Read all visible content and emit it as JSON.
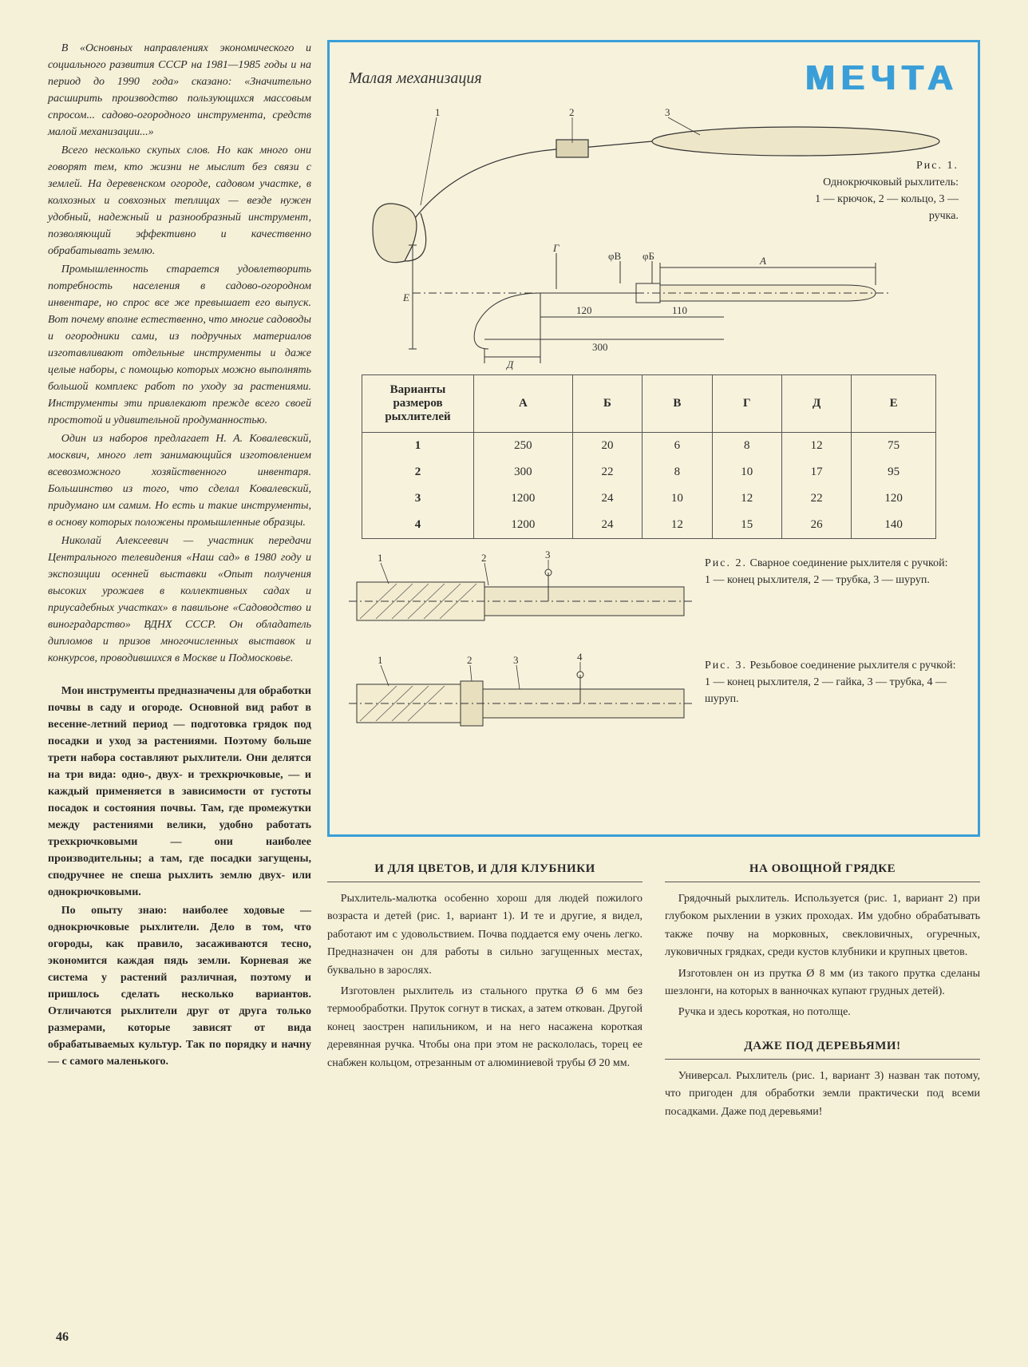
{
  "page_number": "46",
  "section_label": "Малая механизация",
  "title": "МЕЧТА",
  "colors": {
    "accent": "#3a9fd8",
    "paper": "#f5f0d8",
    "ink": "#2a2a2a"
  },
  "intro": {
    "p1": "В «Основных направлениях экономического и социального развития СССР на 1981—1985 годы и на период до 1990 года» сказано: «Значительно расширить производство пользующихся массовым спросом... садово-огородного инструмента, средств малой механизации...»",
    "p2": "Всего несколько скупых слов. Но как много они говорят тем, кто жизни не мыслит без связи с землей. На деревенском огороде, садовом участке, в колхозных и совхозных теплицах — везде нужен удобный, надежный и разнообразный инструмент, позволяющий эффективно и качественно обрабатывать землю.",
    "p3": "Промышленность старается удовлетворить потребность населения в садово-огородном инвентаре, но спрос все же превышает его выпуск. Вот почему вполне естественно, что многие садоводы и огородники сами, из подручных материалов изготавливают отдельные инструменты и даже целые наборы, с помощью которых можно выполнять большой комплекс работ по уходу за растениями. Инструменты эти привлекают прежде всего своей простотой и удивительной продуманностью.",
    "p4": "Один из наборов предлагает Н. А. Ковалевский, москвич, много лет занимающийся изготовлением всевозможного хозяйственного инвентаря. Большинство из того, что сделал Ковалевский, придумано им самим. Но есть и такие инструменты, в основу которых положены промышленные образцы.",
    "p5": "Николай Алексеевич — участник передачи Центрального телевидения «Наш сад» в 1980 году и экспозиции осенней выставки «Опыт получения высоких урожаев в коллективных садах и приусадебных участках» в павильоне «Садоводство и виноградарство» ВДНХ СССР. Он обладатель дипломов и призов многочисленных выставок и конкурсов, проводившихся в Москве и Подмосковье."
  },
  "bold_intro": {
    "p1": "Мои инструменты предназначены для обработки почвы в саду и огороде. Основной вид работ в весенне-летний период — подготовка грядок под посадки и уход за растениями. Поэтому больше трети набора составляют рыхлители. Они делятся на три вида: одно-, двух- и трехкрючковые, — и каждый применяется в зависимости от густоты посадок и состояния почвы. Там, где промежутки между растениями велики, удобно работать трехкрючковыми — они наиболее производительны; а там, где посадки загущены, сподручнее не спеша рыхлить землю двух- или однокрючковыми.",
    "p2": "По опыту знаю: наиболее ходовые — однокрючковые рыхлители. Дело в том, что огороды, как правило, засаживаются тесно, экономится каждая пядь земли. Корневая же система у растений различная, поэтому и пришлось сделать несколько вариантов. Отличаются рыхлители друг от друга только размерами, которые зависят от вида обрабатываемых культур. Так по порядку и начну — с самого маленького."
  },
  "fig1": {
    "caption_title": "Рис. 1.",
    "caption_name": "Однокрючковый рыхлитель:",
    "legend": "1 — крючок, 2 — кольцо, 3 — ручка.",
    "dim_labels": [
      "А",
      "Б",
      "В",
      "Г",
      "Д",
      "Е"
    ],
    "dims_shown": {
      "d1": "120",
      "d2": "110",
      "d3": "300"
    },
    "callouts": [
      "1",
      "2",
      "3"
    ]
  },
  "table": {
    "header_left": "Варианты размеров рыхлителей",
    "cols": [
      "А",
      "Б",
      "В",
      "Г",
      "Д",
      "Е"
    ],
    "rows": [
      {
        "n": "1",
        "v": [
          "250",
          "20",
          "6",
          "8",
          "12",
          "75"
        ]
      },
      {
        "n": "2",
        "v": [
          "300",
          "22",
          "8",
          "10",
          "17",
          "95"
        ]
      },
      {
        "n": "3",
        "v": [
          "1200",
          "24",
          "10",
          "12",
          "22",
          "120"
        ]
      },
      {
        "n": "4",
        "v": [
          "1200",
          "24",
          "12",
          "15",
          "26",
          "140"
        ]
      }
    ]
  },
  "fig2": {
    "title": "Рис. 2.",
    "name": "Сварное соединение рыхлителя с ручкой:",
    "legend": "1 — конец рыхлителя, 2 — трубка, 3 — шуруп.",
    "callouts": [
      "1",
      "2",
      "3"
    ]
  },
  "fig3": {
    "title": "Рис. 3.",
    "name": "Резьбовое соединение рыхлителя с ручкой:",
    "legend": "1 — конец рыхлителя, 2 — гайка, 3 — трубка, 4 — шуруп.",
    "callouts": [
      "1",
      "2",
      "3",
      "4"
    ]
  },
  "articles": {
    "a1": {
      "h": "И ДЛЯ ЦВЕТОВ, И ДЛЯ КЛУБНИКИ",
      "p1": "Рыхлитель-малютка особенно хорош для людей пожилого возраста и детей (рис. 1, вариант 1). И те и другие, я видел, работают им с удовольствием. Почва поддается ему очень легко. Предназначен он для работы в сильно загущенных местах, буквально в зарослях.",
      "p2": "Изготовлен рыхлитель из стального прутка Ø 6 мм без термообработки. Пруток согнут в тисках, а затем откован. Другой конец заострен напильником, и на него насажена короткая деревянная ручка. Чтобы она при этом не раскололась, торец ее снабжен кольцом, отрезанным от алюминиевой трубы Ø 20 мм."
    },
    "a2": {
      "h": "НА ОВОЩНОЙ ГРЯДКЕ",
      "p1": "Грядочный рыхлитель. Используется (рис. 1, вариант 2) при глубоком рыхлении в узких проходах. Им удобно обрабатывать также почву на морковных, свекловичных, огуречных, луковичных грядках, среди кустов клубники и крупных цветов.",
      "p2": "Изготовлен он из прутка Ø 8 мм (из такого прутка сделаны шезлонги, на которых в ванночках купают грудных детей).",
      "p3": "Ручка и здесь короткая, но потолще."
    },
    "a3": {
      "h": "ДАЖЕ ПОД ДЕРЕВЬЯМИ!",
      "p1": "Универсал. Рыхлитель (рис. 1, вариант 3) назван так потому, что пригоден для обработки земли практически под всеми посадками. Даже под деревьями!"
    }
  }
}
